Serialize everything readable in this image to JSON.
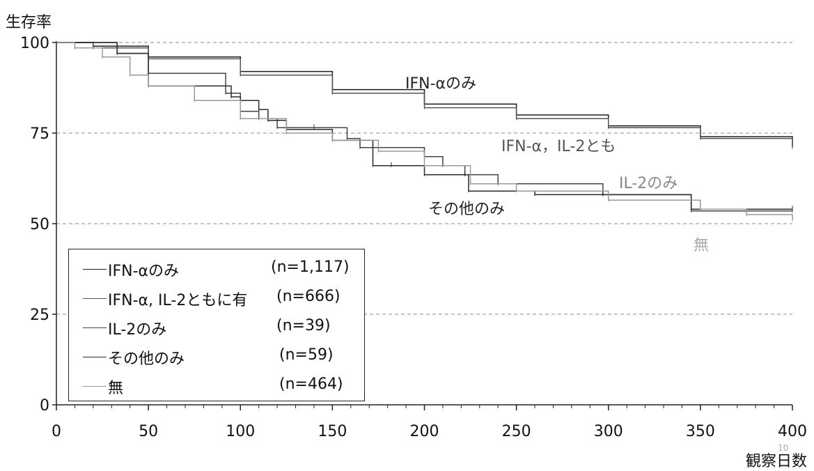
{
  "page_number": "10",
  "chart_data": {
    "type": "line",
    "ylabel": "生存率",
    "xlabel": "観察日数",
    "xlim": [
      0,
      400
    ],
    "ylim": [
      0,
      100
    ],
    "xticks": [
      0,
      50,
      100,
      150,
      200,
      250,
      300,
      350,
      400
    ],
    "yticks": [
      0,
      25,
      50,
      75,
      100
    ],
    "grid": "horizontal dashed at 25, 50, 75, 100",
    "step": true,
    "legend_position": "lower-left",
    "series": [
      {
        "name": "IFN-αのみ",
        "n": "(n=1,117)",
        "color": "#1a1a1a",
        "x": [
          0,
          20,
          50,
          100,
          150,
          200,
          250,
          300,
          350,
          400
        ],
        "y": [
          100,
          99,
          96,
          92,
          87,
          83,
          80,
          77,
          74,
          71.5
        ]
      },
      {
        "name": "IFN-α, IL-2ともに有",
        "n": "(n=666)",
        "color": "#555555",
        "x": [
          0,
          20,
          50,
          100,
          150,
          200,
          250,
          300,
          350,
          400
        ],
        "y": [
          100,
          98.5,
          95.5,
          91,
          86,
          82,
          79,
          76.5,
          73.5,
          71
        ]
      },
      {
        "name": "IL-2のみ",
        "n": "(n=39)",
        "color": "#444444",
        "x": [
          0,
          33,
          50,
          92,
          100,
          110,
          120,
          140,
          158,
          165,
          200,
          210,
          222,
          240,
          297,
          345,
          400
        ],
        "y": [
          100,
          97,
          91.5,
          86,
          81,
          79,
          76.5,
          76.5,
          73.5,
          71,
          68.5,
          66,
          63.5,
          61,
          58,
          53.5,
          53.5
        ]
      },
      {
        "name": "その他のみ",
        "n": "(n=59)",
        "color": "#2a2a2a",
        "x": [
          0,
          33,
          50,
          95,
          100,
          110,
          115,
          125,
          150,
          172,
          182,
          200,
          222,
          224,
          260,
          297,
          345,
          400
        ],
        "y": [
          100,
          97,
          88,
          85,
          84,
          81.5,
          78.5,
          76,
          73,
          66,
          66,
          63.5,
          63.5,
          59,
          58,
          58,
          54,
          54
        ]
      },
      {
        "name": "無",
        "n": "(n=464)",
        "color": "#999999",
        "x": [
          0,
          10,
          25,
          40,
          50,
          75,
          100,
          125,
          150,
          175,
          200,
          225,
          250,
          300,
          350,
          375,
          400
        ],
        "y": [
          100,
          98.5,
          96,
          91,
          88,
          84,
          79,
          75,
          73,
          70,
          66,
          61,
          59,
          56.5,
          54,
          52.5,
          51
        ]
      }
    ],
    "annotations": [
      {
        "text": "IFN-αのみ"
      },
      {
        "text": "IFN-α，IL-2とも"
      },
      {
        "text": "IL-2のみ"
      },
      {
        "text": "その他のみ"
      },
      {
        "text": "無"
      }
    ]
  }
}
